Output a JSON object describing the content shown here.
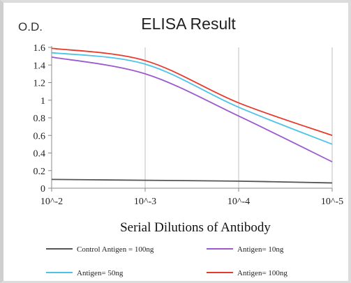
{
  "chart_data": {
    "type": "line",
    "title": "ELISA Result",
    "ylabel": "O.D.",
    "xlabel": "Serial Dilutions  of Antibody",
    "x_tick_labels": [
      "10^-2",
      "10^-3",
      "10^-4",
      "10^-5"
    ],
    "x": [
      0.01,
      0.001,
      0.0001,
      1e-05
    ],
    "x_scale": "log, decreasing",
    "y_ticks": [
      "0",
      "0.2",
      "0.4",
      "0.6",
      "0.8",
      "1",
      "1.2",
      "1.4",
      "1.6"
    ],
    "ylim": [
      0,
      1.6
    ],
    "grid": "vertical lines at each x tick",
    "legend_position": "bottom",
    "series": [
      {
        "name": "Control Antigen = 100ng",
        "color": "#555555",
        "values": [
          0.1,
          0.09,
          0.08,
          0.06
        ]
      },
      {
        "name": "Antigen= 10ng",
        "color": "#9b59d0",
        "values": [
          1.49,
          1.3,
          0.82,
          0.3
        ]
      },
      {
        "name": "Antigen= 50ng",
        "color": "#4dc3e8",
        "values": [
          1.54,
          1.41,
          0.92,
          0.5
        ]
      },
      {
        "name": "Antigen= 100ng",
        "color": "#e8392b",
        "values": [
          1.59,
          1.45,
          0.97,
          0.6
        ]
      }
    ]
  }
}
